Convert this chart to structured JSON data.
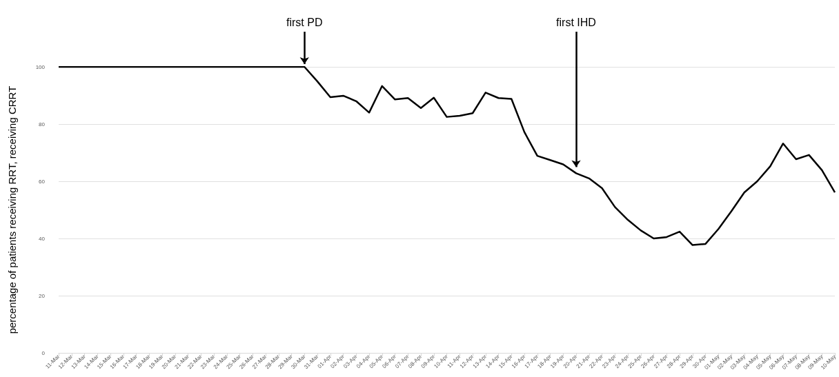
{
  "chart_data": {
    "type": "line",
    "ylabel": "percentage of patients receiving RRT, receiving CRRT",
    "categories": [
      "11-Mar",
      "12-Mar",
      "13-Mar",
      "14-Mar",
      "15-Mar",
      "16-Mar",
      "17-Mar",
      "18-Mar",
      "19-Mar",
      "20-Mar",
      "21-Mar",
      "22-Mar",
      "23-Mar",
      "24-Mar",
      "25-Mar",
      "26-Mar",
      "27-Mar",
      "28-Mar",
      "29-Mar",
      "30-Mar",
      "31-Mar",
      "01-Apr",
      "02-Apr",
      "03-Apr",
      "04-Apr",
      "05-Apr",
      "06-Apr",
      "07-Apr",
      "08-Apr",
      "09-Apr",
      "10-Apr",
      "11-Apr",
      "12-Apr",
      "13-Apr",
      "14-Apr",
      "15-Apr",
      "16-Apr",
      "17-Apr",
      "18-Apr",
      "19-Apr",
      "20-Apr",
      "21-Apr",
      "22-Apr",
      "23-Apr",
      "24-Apr",
      "25-Apr",
      "26-Apr",
      "27-Apr",
      "28-Apr",
      "29-Apr",
      "30-Apr",
      "01-May",
      "02-May",
      "03-May",
      "04-May",
      "05-May",
      "06-May",
      "07-May",
      "08-May",
      "09-May",
      "10-May"
    ],
    "series": [
      {
        "color": "#000000",
        "values": [
          100,
          100,
          100,
          100,
          100,
          100,
          100,
          100,
          100,
          100,
          100,
          100,
          100,
          100,
          100,
          100,
          100,
          100,
          100,
          100,
          94.9,
          89.4,
          89.9,
          88,
          84,
          93.3,
          88.6,
          89.1,
          85.6,
          89.2,
          82.5,
          82.9,
          83.8,
          91,
          89.1,
          88.8,
          77.2,
          68.9,
          67.4,
          65.9,
          62.8,
          61,
          57.6,
          51,
          46.5,
          42.8,
          40,
          40.5,
          42.4,
          37.7,
          38.1,
          43.3,
          49.5,
          56.1,
          60,
          65.2,
          73.2,
          67.7,
          69.2,
          63.9,
          56.1
        ]
      }
    ],
    "ylim": [
      0,
      100
    ],
    "yticks": [
      0,
      20,
      40,
      60,
      80,
      100
    ],
    "grid": "y",
    "marker": "none",
    "line_style": "solid",
    "annotations": [
      {
        "text": "first PD",
        "x": "30-Mar",
        "y": 100
      },
      {
        "text": "first IHD",
        "x": "20-Apr",
        "y": 64
      }
    ]
  }
}
